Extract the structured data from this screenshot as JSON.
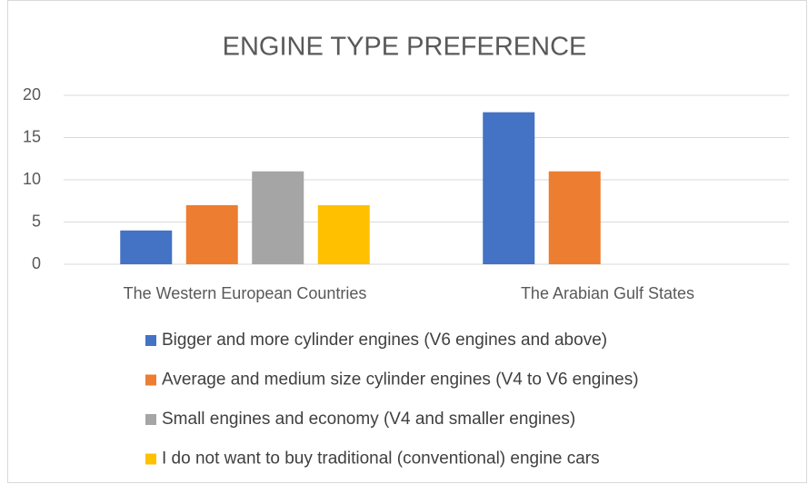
{
  "chart_data": {
    "type": "bar",
    "title": "ENGINE TYPE PREFERENCE",
    "categories": [
      "The Western European Countries",
      "The Arabian Gulf States"
    ],
    "series": [
      {
        "name": "Bigger and more cylinder engines (V6 engines and above)",
        "color": "#4472c4",
        "values": [
          4,
          18
        ]
      },
      {
        "name": "Average and medium size cylinder engines (V4 to V6 engines)",
        "color": "#ed7d31",
        "values": [
          7,
          11
        ]
      },
      {
        "name": "Small engines and economy (V4 and smaller engines)",
        "color": "#a5a5a5",
        "values": [
          11,
          0
        ]
      },
      {
        "name": "I do not want to buy traditional (conventional) engine cars",
        "color": "#ffc000",
        "values": [
          7,
          0
        ]
      }
    ],
    "ylim": [
      0,
      20
    ],
    "yticks": [
      0,
      5,
      10,
      15,
      20
    ],
    "grid": true,
    "legend": "bottom"
  }
}
